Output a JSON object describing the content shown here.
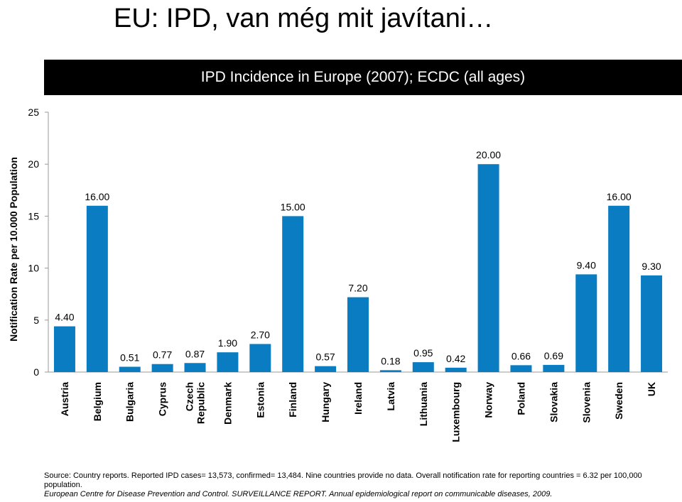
{
  "slide": {
    "title": "EU: IPD, van még mit javítani…",
    "subtitle": "IPD Incidence in Europe (2007); ECDC (all ages)",
    "source_line": "Source: Country reports. Reported IPD cases= 13,573, confirmed= 13,484. Nine countries provide no data. Overall notification rate for reporting countries = 6.32 per 100,000 population.",
    "reference": "European Centre for Disease Prevention and Control. SURVEILLANCE REPORT. Annual epidemiological report on communicable diseases, 2009."
  },
  "chart_data": {
    "type": "bar",
    "title": "IPD Incidence in Europe (2007); ECDC (all ages)",
    "ylabel": "Notification Rate per 10.000 Population",
    "xlabel": "",
    "ylim": [
      0,
      25
    ],
    "yticks": [
      "0",
      "5",
      "10",
      "15",
      "20",
      "25"
    ],
    "categories": [
      "Austria",
      "Belgium",
      "Bulgaria",
      "Cyprus",
      "Czech Republic",
      "Denmark",
      "Estonia",
      "Finland",
      "Hungary",
      "Ireland",
      "Latvia",
      "Lithuania",
      "Luxembourg",
      "Norway",
      "Poland",
      "Slovakia",
      "Slovenia",
      "Sweden",
      "UK"
    ],
    "values": [
      4.4,
      16.0,
      0.51,
      0.77,
      0.87,
      1.9,
      2.7,
      15.0,
      0.57,
      7.2,
      0.18,
      0.95,
      0.42,
      20.0,
      0.66,
      0.69,
      9.4,
      16.0,
      9.3
    ],
    "value_labels": [
      "4.40",
      "16.00",
      "0.51",
      "0.77",
      "0.87",
      "1.90",
      "2.70",
      "15.00",
      "0.57",
      "7.20",
      "0.18",
      "0.95",
      "0.42",
      "20.00",
      "0.66",
      "0.69",
      "9.40",
      "16.00",
      "9.30"
    ],
    "grid": false,
    "legend": "none",
    "bar_color": "#0A7CC2"
  }
}
